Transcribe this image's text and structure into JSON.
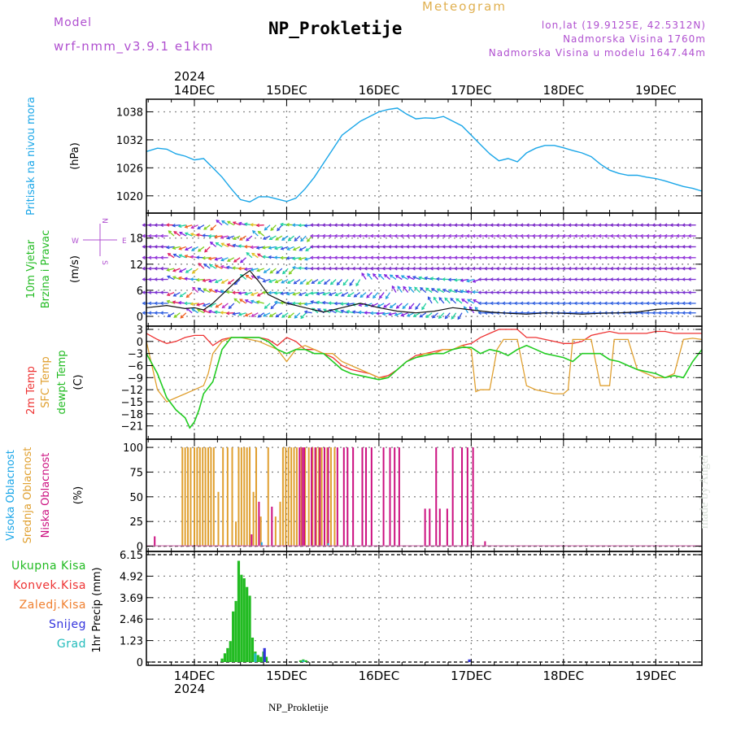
{
  "header": {
    "model_label": "Model",
    "model_name": "wrf-nmm_v3.9.1 e1km",
    "product": "Meteogram",
    "station": "NP_Prokletije",
    "lonlat": "lon,lat (19.9125E, 42.5312N)",
    "elevation": "Nadmorska Visina 1760m",
    "model_elevation": "Nadmorska Visina u modelu 1647.44m",
    "footer_station": "NP_Prokletije",
    "watermark": "made by Angel",
    "year": "2024"
  },
  "colors": {
    "pressure": "#1aa6e8",
    "temp2m": "#ee3333",
    "sfc": "#e0a030",
    "dewpt": "#22cc22",
    "purple": "#b050d0",
    "cloud_high": "#1aa6e8",
    "cloud_mid": "#e0a030",
    "cloud_low": "#cc1080",
    "rain": "#22bb22",
    "conv": "#ee3333",
    "frozen": "#f08030",
    "snow": "#3333dd",
    "hail": "#22bbbb"
  },
  "chart_data": [
    {
      "type": "line",
      "panel": "pressure",
      "ylabel_side": "Pritisak na nivou mora",
      "ylabel": "(hPa)",
      "x_ticks": [
        "14DEC",
        "15DEC",
        "16DEC",
        "17DEC",
        "18DEC",
        "19DEC"
      ],
      "x_tick_positions": [
        1,
        2,
        3,
        4,
        5,
        6
      ],
      "xlim": [
        0.48,
        6.5
      ],
      "yticks": [
        1020,
        1026,
        1032,
        1038
      ],
      "ylim": [
        1017,
        1040
      ],
      "grid": true,
      "series": [
        {
          "name": "Pritisak na nivou mora",
          "x": [
            0.48,
            0.6,
            0.7,
            0.8,
            0.9,
            1.0,
            1.1,
            1.2,
            1.3,
            1.4,
            1.5,
            1.6,
            1.7,
            1.8,
            1.9,
            2.0,
            2.1,
            2.2,
            2.3,
            2.4,
            2.5,
            2.6,
            2.7,
            2.8,
            2.9,
            3.0,
            3.1,
            3.2,
            3.3,
            3.4,
            3.5,
            3.6,
            3.7,
            3.8,
            3.9,
            4.0,
            4.1,
            4.2,
            4.3,
            4.4,
            4.5,
            4.6,
            4.7,
            4.8,
            4.9,
            5.0,
            5.1,
            5.2,
            5.3,
            5.4,
            5.5,
            5.6,
            5.7,
            5.8,
            5.9,
            6.0,
            6.1,
            6.2,
            6.3,
            6.4,
            6.5
          ],
          "y": [
            1029.5,
            1030.2,
            1030.0,
            1029.0,
            1028.5,
            1027.7,
            1028.0,
            1026.0,
            1024.0,
            1021.5,
            1019.2,
            1018.7,
            1019.8,
            1019.8,
            1019.3,
            1018.8,
            1019.5,
            1021.5,
            1024.0,
            1027.0,
            1030.0,
            1033.0,
            1034.5,
            1036.0,
            1037.0,
            1038.0,
            1038.5,
            1038.8,
            1037.5,
            1036.5,
            1036.7,
            1036.6,
            1037.0,
            1036.0,
            1035.0,
            1033.0,
            1031.0,
            1029.0,
            1027.5,
            1028.0,
            1027.3,
            1029.2,
            1030.2,
            1030.8,
            1030.8,
            1030.3,
            1029.7,
            1029.2,
            1028.4,
            1026.8,
            1025.5,
            1024.8,
            1024.4,
            1024.4,
            1024.0,
            1023.7,
            1023.2,
            1022.6,
            1022.0,
            1021.6,
            1021.0
          ]
        }
      ]
    },
    {
      "type": "line",
      "panel": "wind",
      "ylabel_side": "10m Vjetar Brzina i Pravac",
      "ylabel": "(m/s)",
      "compass": "N W E S",
      "yticks": [
        0,
        6,
        12,
        18
      ],
      "ylim": [
        -1.5,
        23
      ],
      "grid": true,
      "series": [
        {
          "name": "Brzina",
          "x": [
            0.48,
            0.7,
            0.9,
            1.0,
            1.1,
            1.2,
            1.3,
            1.4,
            1.5,
            1.6,
            1.7,
            1.8,
            1.9,
            2.0,
            2.1,
            2.2,
            2.3,
            2.4,
            2.6,
            2.8,
            3.0,
            3.2,
            3.4,
            3.6,
            3.8,
            4.0,
            4.2,
            4.4,
            4.6,
            4.8,
            5.0,
            5.2,
            5.4,
            5.6,
            5.8,
            6.0,
            6.2,
            6.5
          ],
          "y": [
            2,
            2.5,
            1.8,
            2,
            1.5,
            3,
            5,
            7,
            9,
            10.5,
            8,
            5,
            4,
            3,
            2.5,
            2,
            1.5,
            1,
            2,
            3,
            2,
            1.2,
            0.8,
            1.2,
            2,
            1.5,
            1,
            0.7,
            0.5,
            0.8,
            0.7,
            0.5,
            0.7,
            0.8,
            1,
            1.6,
            1.8,
            1.8
          ]
        }
      ]
    },
    {
      "type": "line",
      "panel": "temperature",
      "ylabel_side": [
        "2m Temp",
        "SFC Temp",
        "dewpt Temp"
      ],
      "ylabel": "(C)",
      "yticks": [
        -21,
        -18,
        -15,
        -12,
        -9,
        -6,
        -3,
        0,
        3
      ],
      "ylim": [
        -23.5,
        3
      ],
      "grid": true,
      "series": [
        {
          "name": "2m Temp",
          "x": [
            0.48,
            0.6,
            0.7,
            0.8,
            0.9,
            1.0,
            1.1,
            1.2,
            1.3,
            1.4,
            1.5,
            1.6,
            1.7,
            1.8,
            1.9,
            2.0,
            2.1,
            2.2,
            2.3,
            2.4,
            2.5,
            2.6,
            2.7,
            2.8,
            2.9,
            3.0,
            3.1,
            3.2,
            3.3,
            3.4,
            3.5,
            3.6,
            3.7,
            3.8,
            3.9,
            4.0,
            4.1,
            4.2,
            4.3,
            4.4,
            4.5,
            4.6,
            4.7,
            4.8,
            4.9,
            5.0,
            5.1,
            5.2,
            5.3,
            5.4,
            5.5,
            5.6,
            5.7,
            5.8,
            5.9,
            6.0,
            6.1,
            6.2,
            6.3,
            6.4,
            6.5
          ],
          "y": [
            2,
            0.5,
            -0.5,
            0,
            1,
            1.5,
            1.5,
            -1,
            0.5,
            1,
            1,
            1,
            1,
            0.5,
            -1,
            1,
            0,
            -2,
            -2,
            -3,
            -4,
            -6,
            -7,
            -7.5,
            -8,
            -9,
            -8.5,
            -7,
            -5,
            -3.5,
            -3,
            -2.5,
            -2,
            -2,
            -1,
            -0.5,
            1,
            2,
            3,
            3,
            3,
            1,
            1,
            0.5,
            0,
            -0.5,
            -0.5,
            0,
            1.5,
            2,
            2.5,
            2,
            2,
            2,
            2,
            2.5,
            2.5,
            2,
            2,
            2,
            2
          ]
        },
        {
          "name": "SFC Temp",
          "x": [
            0.48,
            0.6,
            0.7,
            0.8,
            0.9,
            1.0,
            1.1,
            1.15,
            1.2,
            1.3,
            1.4,
            1.5,
            1.6,
            1.7,
            1.8,
            1.9,
            2.0,
            2.1,
            2.2,
            2.3,
            2.4,
            2.5,
            2.6,
            2.7,
            2.8,
            2.9,
            3.0,
            3.1,
            3.2,
            3.3,
            3.4,
            3.5,
            3.6,
            3.7,
            3.8,
            3.9,
            4.0,
            4.05,
            4.1,
            4.2,
            4.28,
            4.35,
            4.4,
            4.5,
            4.6,
            4.7,
            4.8,
            4.9,
            5.0,
            5.05,
            5.1,
            5.2,
            5.3,
            5.4,
            5.5,
            5.55,
            5.6,
            5.7,
            5.8,
            5.9,
            6.0,
            6.1,
            6.2,
            6.3,
            6.4,
            6.5
          ],
          "y": [
            0,
            -12,
            -15,
            -14,
            -13,
            -12,
            -11,
            -8,
            -3,
            0,
            1,
            1,
            0.5,
            0,
            -1,
            -2,
            -5,
            -2,
            -1,
            -2,
            -3,
            -3,
            -5,
            -6,
            -7,
            -8,
            -9,
            -9,
            -7,
            -5,
            -4,
            -3,
            -3,
            -2,
            -2,
            -1,
            -2,
            -12.5,
            -12,
            -12,
            -2,
            0.5,
            0.5,
            0.5,
            -11,
            -12,
            -12.5,
            -13,
            -13,
            -12,
            0.5,
            0.5,
            0.5,
            -11,
            -11,
            0.5,
            0.5,
            0.5,
            -7,
            -8,
            -9,
            -9,
            -8,
            0.5,
            0.8,
            0.5
          ]
        },
        {
          "name": "dewpt Temp",
          "x": [
            0.48,
            0.6,
            0.7,
            0.8,
            0.9,
            0.95,
            1.0,
            1.05,
            1.1,
            1.2,
            1.3,
            1.4,
            1.5,
            1.6,
            1.7,
            1.8,
            1.9,
            2.0,
            2.1,
            2.2,
            2.3,
            2.4,
            2.5,
            2.6,
            2.7,
            2.8,
            2.9,
            3.0,
            3.1,
            3.2,
            3.3,
            3.4,
            3.5,
            3.6,
            3.7,
            3.8,
            3.9,
            4.0,
            4.1,
            4.2,
            4.3,
            4.4,
            4.5,
            4.6,
            4.7,
            4.8,
            4.9,
            5.0,
            5.1,
            5.2,
            5.3,
            5.4,
            5.5,
            5.6,
            5.7,
            5.8,
            5.9,
            6.0,
            6.1,
            6.2,
            6.3,
            6.4,
            6.5
          ],
          "y": [
            -3,
            -8,
            -14,
            -17,
            -19,
            -21.5,
            -20,
            -17,
            -13,
            -10,
            -2,
            1,
            1,
            1,
            1,
            0,
            -2,
            -3,
            -2,
            -2,
            -3,
            -3,
            -5,
            -7,
            -8,
            -8.5,
            -9,
            -9.5,
            -9,
            -7,
            -5,
            -4,
            -3.5,
            -3,
            -3,
            -2,
            -1.5,
            -1.5,
            -3,
            -2,
            -2.5,
            -3.5,
            -2,
            -1,
            -2,
            -3,
            -3.5,
            -4,
            -5,
            -3,
            -3,
            -3,
            -4.5,
            -5,
            -6,
            -7,
            -7.5,
            -8,
            -9,
            -8.5,
            -9,
            -5,
            -2
          ]
        }
      ]
    },
    {
      "type": "bar",
      "panel": "clouds",
      "ylabel_side": [
        "Visoka Oblacnost",
        "Srednja Oblacnost",
        "Niska Oblacnost"
      ],
      "ylabel": "(%)",
      "yticks": [
        0,
        25,
        50,
        75,
        100
      ],
      "ylim": [
        -2,
        105
      ],
      "grid": true,
      "series": [
        {
          "name": "Srednja Oblacnost",
          "x": [
            0.87,
            0.9,
            0.93,
            0.96,
            1.0,
            1.03,
            1.06,
            1.09,
            1.12,
            1.15,
            1.18,
            1.21,
            1.26,
            1.31,
            1.36,
            1.41,
            1.45,
            1.48,
            1.51,
            1.54,
            1.57,
            1.6,
            1.64,
            1.67,
            1.72,
            1.8,
            1.88,
            1.93,
            1.96,
            1.99,
            2.02,
            2.05,
            2.08,
            2.11,
            2.16,
            2.2,
            2.24,
            2.28,
            2.32,
            2.35,
            2.38,
            2.41,
            2.44,
            2.48,
            2.52
          ],
          "y": [
            100,
            100,
            100,
            100,
            100,
            100,
            100,
            100,
            100,
            100,
            100,
            100,
            55,
            100,
            100,
            100,
            25,
            100,
            100,
            100,
            100,
            100,
            55,
            100,
            30,
            100,
            30,
            45,
            100,
            100,
            100,
            100,
            100,
            100,
            100,
            100,
            100,
            100,
            100,
            100,
            100,
            100,
            100,
            100,
            100
          ]
        },
        {
          "name": "Niska Oblacnost",
          "x": [
            0.57,
            1.62,
            1.7,
            1.84,
            2.14,
            2.17,
            2.19,
            2.27,
            2.31,
            2.36,
            2.41,
            2.45,
            2.55,
            2.62,
            2.66,
            2.72,
            2.82,
            2.86,
            2.92,
            3.05,
            3.12,
            3.17,
            3.22,
            3.5,
            3.55,
            3.62,
            3.66,
            3.74,
            3.8,
            3.9,
            3.96,
            4.02,
            4.15
          ],
          "y": [
            10,
            12,
            45,
            40,
            100,
            100,
            100,
            100,
            100,
            100,
            100,
            100,
            100,
            100,
            100,
            100,
            100,
            100,
            100,
            100,
            100,
            100,
            100,
            38,
            38,
            100,
            38,
            38,
            100,
            100,
            100,
            100,
            5
          ]
        },
        {
          "name": "Visoka Oblacnost",
          "x": [
            1.73,
            2.45
          ],
          "y": [
            4,
            3
          ]
        }
      ]
    },
    {
      "type": "bar",
      "panel": "precip",
      "ylabel_side": [
        "Ukupna Kisa",
        "Konvek.Kisa",
        "Zaledj.Kisa",
        "Snijeg",
        "Grad"
      ],
      "ylabel": "1hr Precip (mm)",
      "yticks": [
        "0",
        "1.23",
        "2.46",
        "3.69",
        "4.92",
        "6.15"
      ],
      "ylim": [
        0,
        6.15
      ],
      "grid": true,
      "series": [
        {
          "name": "Ukupna Kisa",
          "x": [
            1.3,
            1.33,
            1.36,
            1.39,
            1.42,
            1.45,
            1.48,
            1.51,
            1.54,
            1.57,
            1.6,
            1.63,
            1.66,
            1.69,
            1.72,
            1.75,
            1.78,
            2.15,
            2.18,
            2.21
          ],
          "y": [
            0.2,
            0.5,
            0.8,
            1.2,
            2.9,
            3.5,
            5.8,
            5.0,
            4.8,
            4.3,
            3.8,
            1.4,
            0.6,
            0.4,
            0.3,
            0.6,
            0.3,
            0.1,
            0.15,
            0.1
          ]
        },
        {
          "name": "Snijeg",
          "x": [
            1.76,
            3.98
          ],
          "y": [
            0.8,
            0.15
          ]
        },
        {
          "name": "Grad",
          "x": [
            1.66,
            2.18
          ],
          "y": [
            0.5,
            0.1
          ]
        }
      ]
    }
  ]
}
